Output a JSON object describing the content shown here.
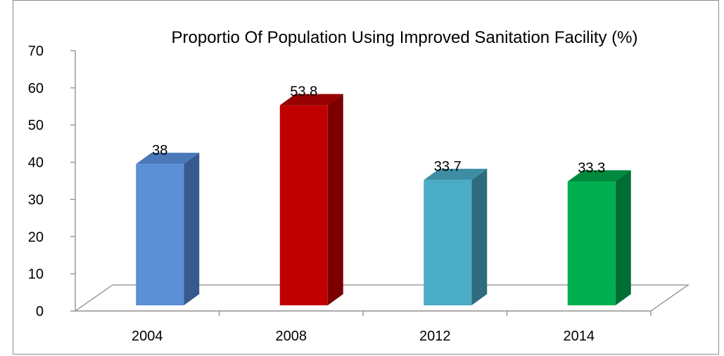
{
  "chart_data": {
    "type": "bar",
    "title": "Proportio Of Population Using Improved Sanitation Facility (%)",
    "categories": [
      "2004",
      "2008",
      "2012",
      "2014"
    ],
    "values": [
      38,
      53.8,
      33.7,
      33.3
    ],
    "data_labels": [
      "38",
      "53.8",
      "33.7",
      "33.3"
    ],
    "ylim": [
      0,
      70
    ],
    "y_ticks": [
      "0",
      "10",
      "20",
      "30",
      "40",
      "50",
      "60",
      "70"
    ],
    "xlabel": "",
    "ylabel": "",
    "grid": false,
    "legend": "none",
    "style": "3d-column",
    "colors": [
      {
        "front": "#5b8fd6",
        "side": "#36598e",
        "top": "#4a78b8"
      },
      {
        "front": "#c00000",
        "side": "#7a0000",
        "top": "#960000"
      },
      {
        "front": "#4bacc6",
        "side": "#2e6b7c",
        "top": "#3d8ea5"
      },
      {
        "front": "#00b050",
        "side": "#006d32",
        "top": "#008a3e"
      }
    ]
  }
}
